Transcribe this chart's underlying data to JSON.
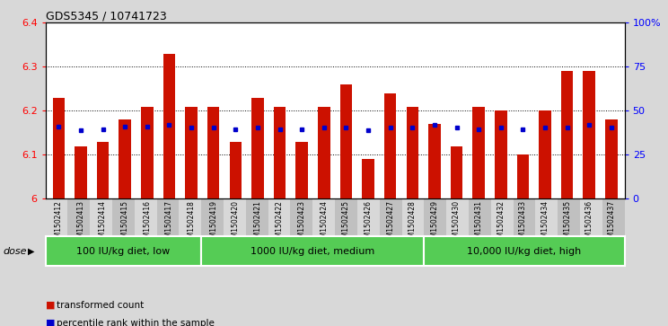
{
  "title": "GDS5345 / 10741723",
  "samples": [
    "GSM1502412",
    "GSM1502413",
    "GSM1502414",
    "GSM1502415",
    "GSM1502416",
    "GSM1502417",
    "GSM1502418",
    "GSM1502419",
    "GSM1502420",
    "GSM1502421",
    "GSM1502422",
    "GSM1502423",
    "GSM1502424",
    "GSM1502425",
    "GSM1502426",
    "GSM1502427",
    "GSM1502428",
    "GSM1502429",
    "GSM1502430",
    "GSM1502431",
    "GSM1502432",
    "GSM1502433",
    "GSM1502434",
    "GSM1502435",
    "GSM1502436",
    "GSM1502437"
  ],
  "red_values": [
    6.23,
    6.12,
    6.13,
    6.18,
    6.21,
    6.33,
    6.21,
    6.21,
    6.13,
    6.23,
    6.21,
    6.13,
    6.21,
    6.26,
    6.09,
    6.24,
    6.21,
    6.17,
    6.12,
    6.21,
    6.2,
    6.1,
    6.2,
    6.29,
    6.29,
    6.18
  ],
  "blue_values": [
    6.165,
    6.155,
    6.157,
    6.165,
    6.165,
    6.168,
    6.163,
    6.163,
    6.157,
    6.163,
    6.158,
    6.158,
    6.163,
    6.163,
    6.155,
    6.163,
    6.163,
    6.168,
    6.162,
    6.158,
    6.163,
    6.158,
    6.162,
    6.163,
    6.168,
    6.163
  ],
  "ylim": [
    6.0,
    6.4
  ],
  "yticks_left": [
    6.0,
    6.1,
    6.2,
    6.3,
    6.4
  ],
  "ytick_labels_left": [
    "6",
    "6.1",
    "6.2",
    "6.3",
    "6.4"
  ],
  "yticks_right": [
    0,
    25,
    50,
    75,
    100
  ],
  "ytick_labels_right": [
    "0",
    "25",
    "50",
    "75",
    "100%"
  ],
  "bar_color": "#cc1100",
  "blue_color": "#0000cc",
  "groups": [
    {
      "label": "100 IU/kg diet, low",
      "start": 0,
      "end": 7
    },
    {
      "label": "1000 IU/kg diet, medium",
      "start": 7,
      "end": 17
    },
    {
      "label": "10,000 IU/kg diet, high",
      "start": 17,
      "end": 26
    }
  ],
  "group_color_light": "#aaeaaa",
  "group_color_dark": "#55cc55",
  "dose_label": "dose",
  "legend_items": [
    {
      "color": "#cc1100",
      "label": "transformed count"
    },
    {
      "color": "#0000cc",
      "label": "percentile rank within the sample"
    }
  ],
  "bg_color": "#d8d8d8",
  "plot_bg": "#ffffff",
  "xtick_bg_odd": "#d8d8d8",
  "xtick_bg_even": "#c0c0c0"
}
